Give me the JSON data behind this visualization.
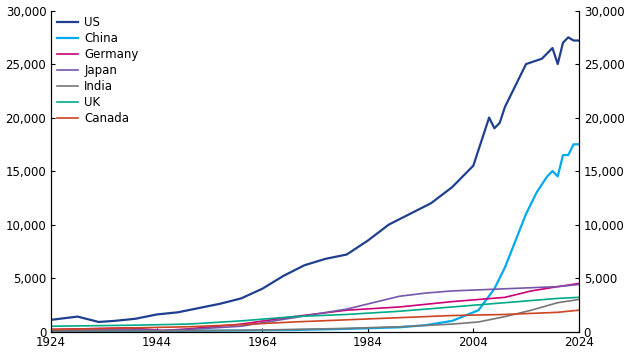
{
  "title": "",
  "year_start": 1924,
  "year_end": 2024,
  "ylim": [
    0,
    30000
  ],
  "yticks": [
    0,
    5000,
    10000,
    15000,
    20000,
    25000,
    30000
  ],
  "xticks": [
    1924,
    1944,
    1964,
    1984,
    2004,
    2024
  ],
  "series_colors": {
    "US": "#1f3f8f",
    "China": "#00aaee",
    "Germany": "#cc0077",
    "Japan": "#7755aa",
    "India": "#777777",
    "UK": "#00aa88",
    "Canada": "#cc4422"
  },
  "series_lw": {
    "US": 1.6,
    "China": 1.6,
    "Germany": 1.2,
    "Japan": 1.2,
    "India": 1.2,
    "UK": 1.2,
    "Canada": 1.2
  },
  "legend_loc": "upper left",
  "background_color": "#ffffff"
}
